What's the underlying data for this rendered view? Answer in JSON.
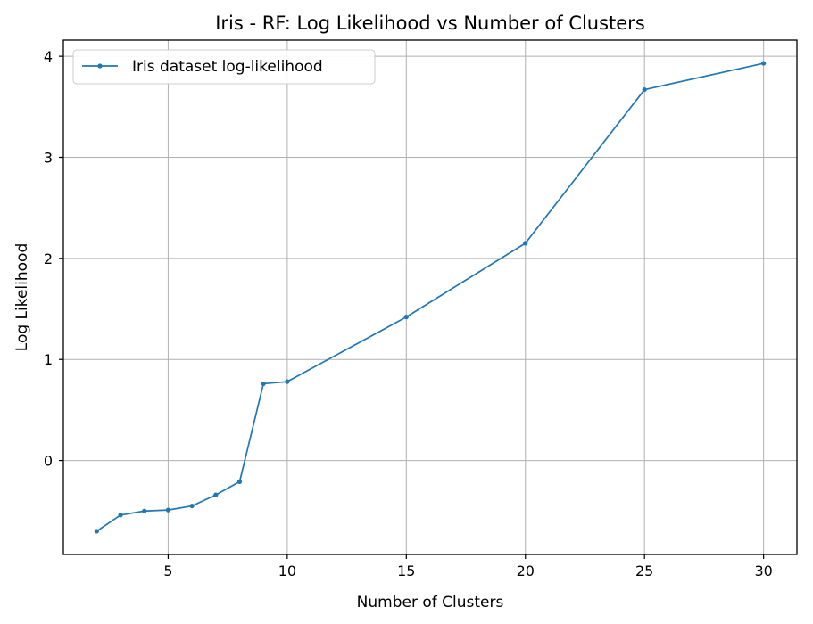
{
  "chart_data": {
    "type": "line",
    "title": "Iris - RF: Log Likelihood vs Number of Clusters",
    "xlabel": "Number of Clusters",
    "ylabel": "Log Likelihood",
    "xlim": [
      0.6,
      31.4
    ],
    "ylim": [
      -0.93,
      4.16
    ],
    "xticks": [
      5,
      10,
      15,
      20,
      25,
      30
    ],
    "yticks": [
      0,
      1,
      2,
      3,
      4
    ],
    "grid": true,
    "legend_position": "top-left",
    "series": [
      {
        "name": "Iris dataset log-likelihood",
        "color": "#1f77b4",
        "marker": "point",
        "x": [
          2,
          3,
          4,
          5,
          6,
          7,
          8,
          9,
          10,
          15,
          20,
          25,
          30
        ],
        "y": [
          -0.7,
          -0.54,
          -0.5,
          -0.49,
          -0.45,
          -0.34,
          -0.21,
          0.76,
          0.78,
          1.42,
          2.15,
          3.67,
          3.93
        ]
      }
    ]
  }
}
